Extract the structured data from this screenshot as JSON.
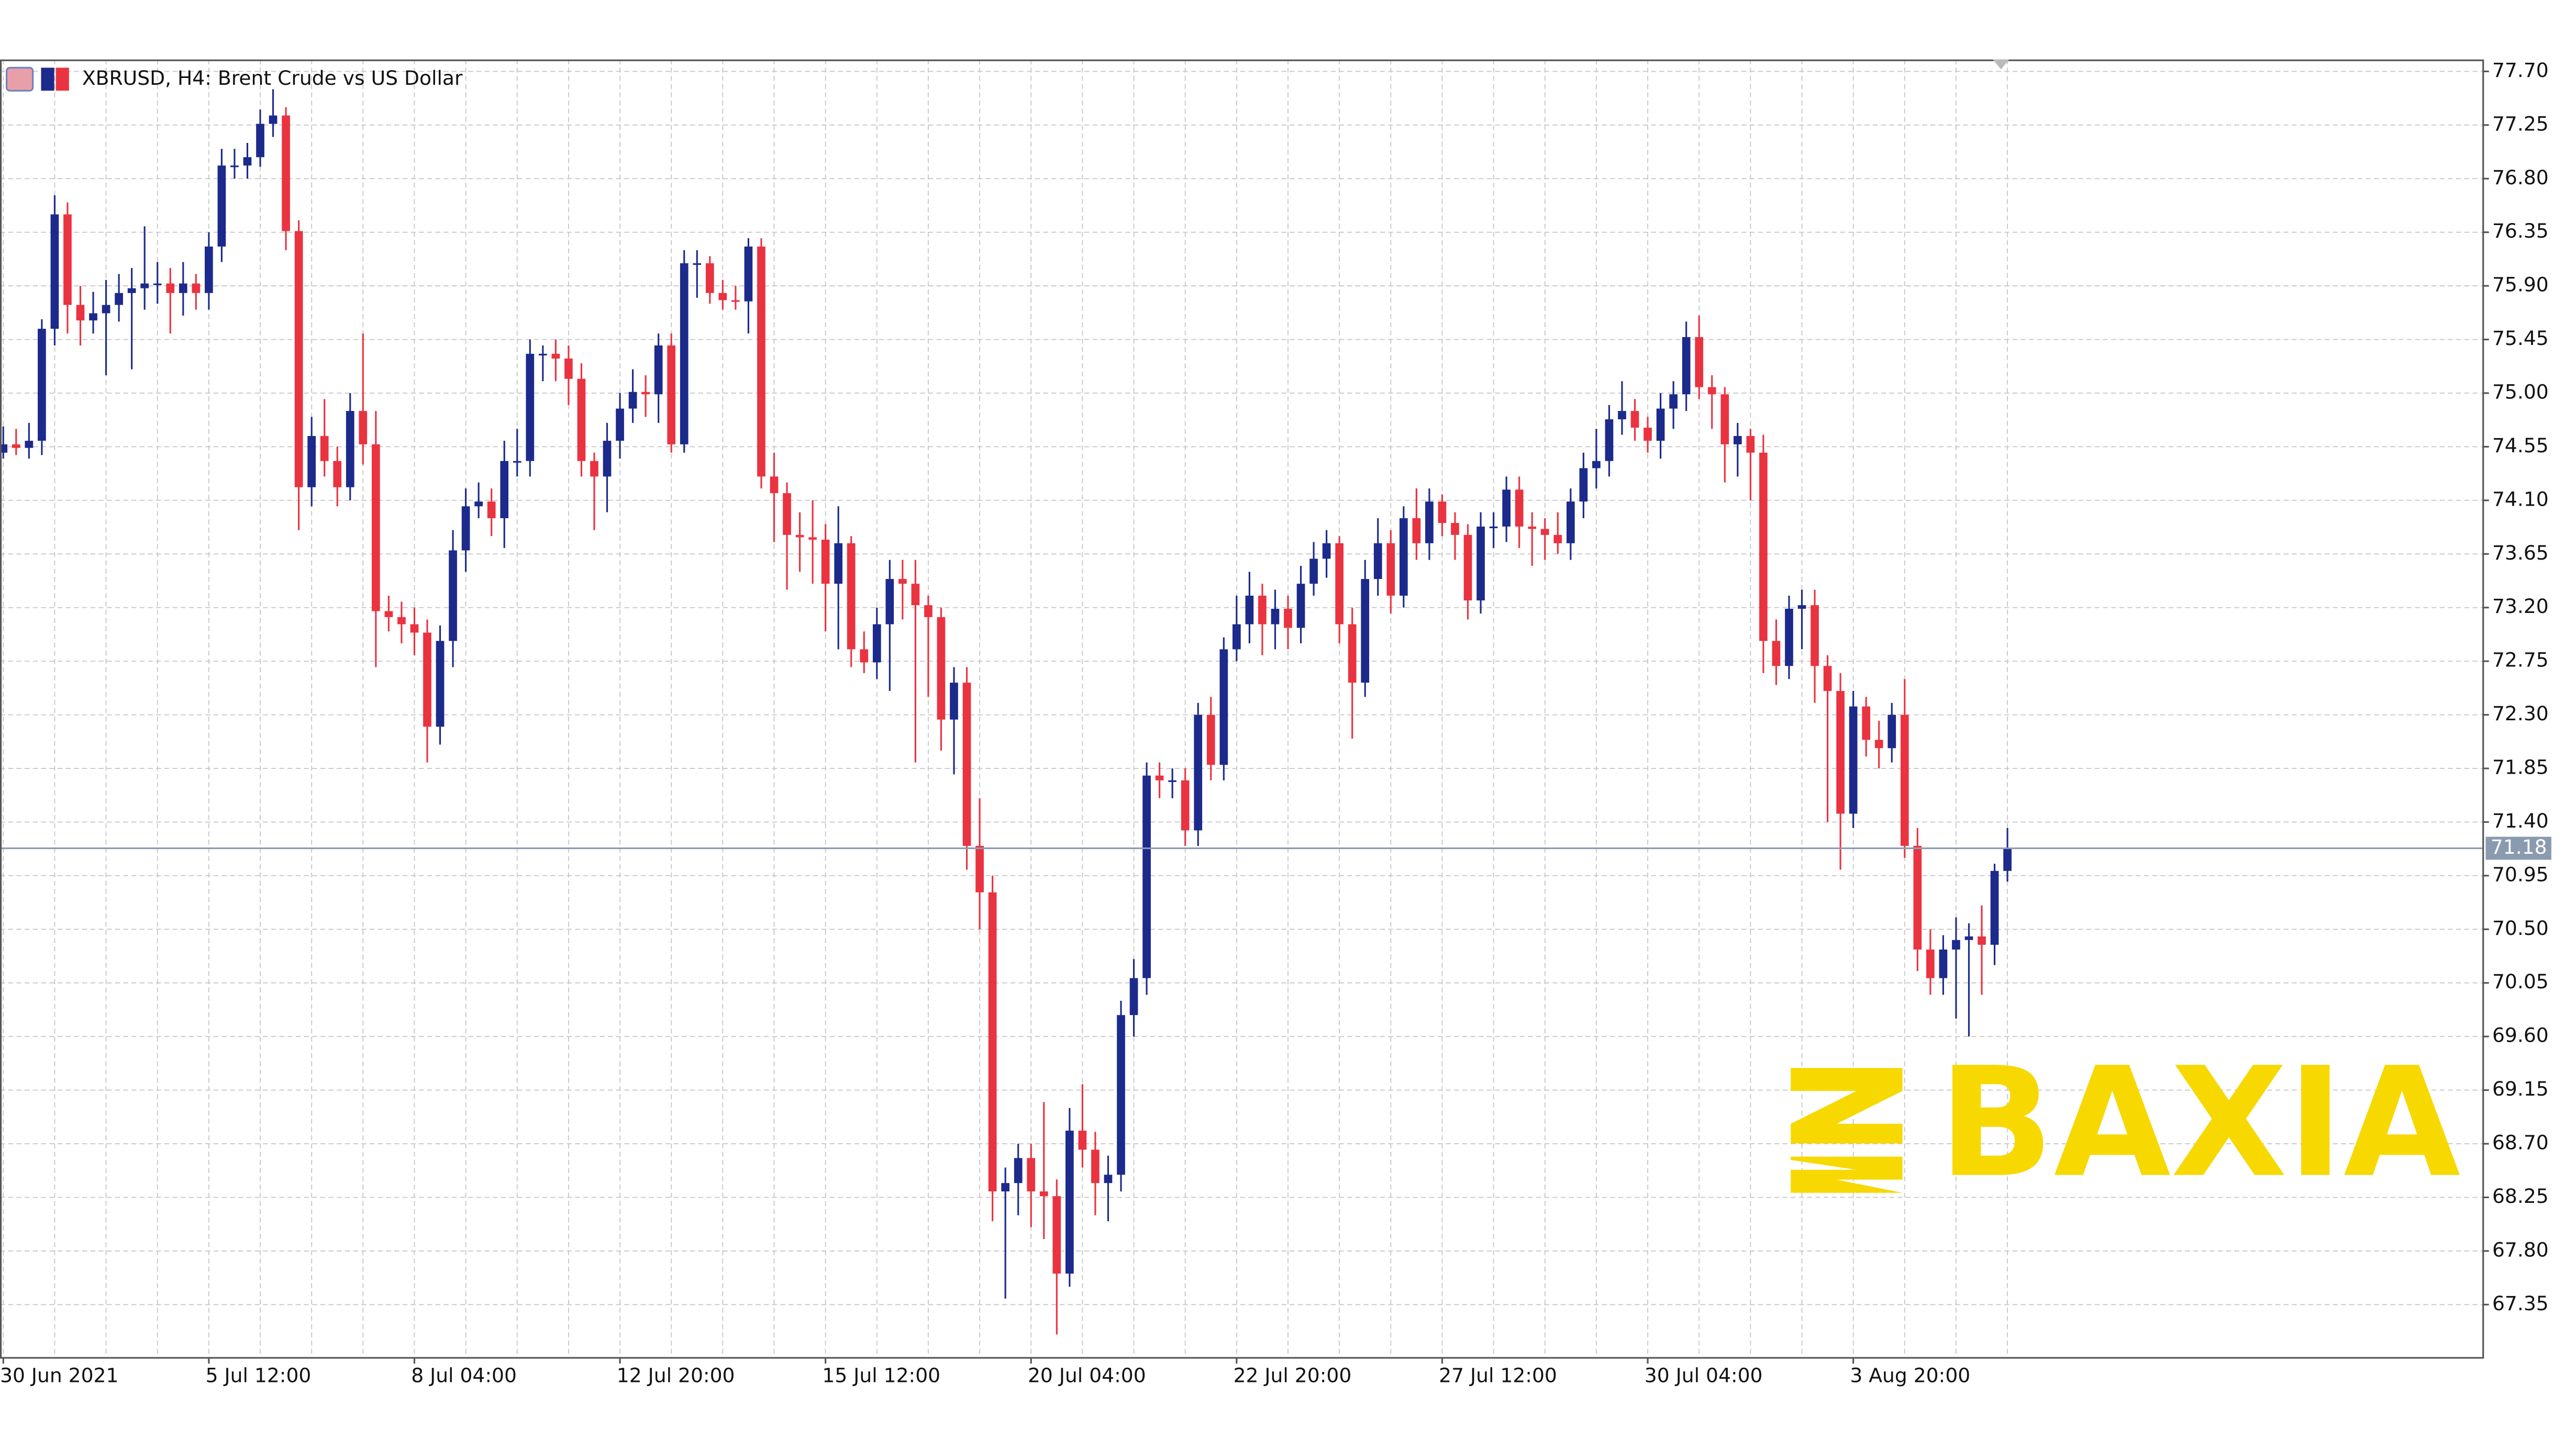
{
  "chart_data": {
    "type": "candlestick",
    "title": "XBRUSD, H4:  Brent Crude vs US Dollar",
    "watermark": "BAXIA",
    "bull_color": "#1c2a8c",
    "bear_color": "#ea3340",
    "grid": true,
    "ylim": [
      66.91,
      77.8
    ],
    "yticks": [
      {
        "value": 77.7,
        "label": "77.70"
      },
      {
        "value": 77.25,
        "label": "77.25"
      },
      {
        "value": 76.8,
        "label": "76.80"
      },
      {
        "value": 76.35,
        "label": "76.35"
      },
      {
        "value": 75.9,
        "label": "75.90"
      },
      {
        "value": 75.45,
        "label": "75.45"
      },
      {
        "value": 75.0,
        "label": "75.00"
      },
      {
        "value": 74.55,
        "label": "74.55"
      },
      {
        "value": 74.1,
        "label": "74.10"
      },
      {
        "value": 73.65,
        "label": "73.65"
      },
      {
        "value": 73.2,
        "label": "73.20"
      },
      {
        "value": 72.75,
        "label": "72.75"
      },
      {
        "value": 72.3,
        "label": "72.30"
      },
      {
        "value": 71.85,
        "label": "71.85"
      },
      {
        "value": 71.4,
        "label": "71.40"
      },
      {
        "value": 70.95,
        "label": "70.95"
      },
      {
        "value": 70.5,
        "label": "70.50"
      },
      {
        "value": 70.05,
        "label": "70.05"
      },
      {
        "value": 69.6,
        "label": "69.60"
      },
      {
        "value": 69.15,
        "label": "69.15"
      },
      {
        "value": 68.7,
        "label": "68.70"
      },
      {
        "value": 68.25,
        "label": "68.25"
      },
      {
        "value": 67.8,
        "label": "67.80"
      },
      {
        "value": 67.35,
        "label": "67.35"
      }
    ],
    "current_price": 71.18,
    "categories": [
      "30 Jun 2021",
      null,
      null,
      null,
      null,
      null,
      null,
      null,
      null,
      null,
      null,
      null,
      null,
      null,
      null,
      null,
      "5 Jul 12:00",
      null,
      null,
      null,
      null,
      null,
      null,
      null,
      null,
      null,
      null,
      null,
      null,
      null,
      null,
      null,
      "8 Jul 04:00",
      null,
      null,
      null,
      null,
      null,
      null,
      null,
      null,
      null,
      null,
      null,
      null,
      null,
      null,
      null,
      "12 Jul 20:00",
      null,
      null,
      null,
      null,
      null,
      null,
      null,
      null,
      null,
      null,
      null,
      null,
      null,
      null,
      null,
      "15 Jul 12:00",
      null,
      null,
      null,
      null,
      null,
      null,
      null,
      null,
      null,
      null,
      null,
      null,
      null,
      null,
      null,
      "20 Jul 04:00",
      null,
      null,
      null,
      null,
      null,
      null,
      null,
      null,
      null,
      null,
      null,
      null,
      null,
      null,
      null,
      "22 Jul 20:00",
      null,
      null,
      null,
      null,
      null,
      null,
      null,
      null,
      null,
      null,
      null,
      null,
      null,
      null,
      null,
      "27 Jul 12:00",
      null,
      null,
      null,
      null,
      null,
      null,
      null,
      null,
      null,
      null,
      null,
      null,
      null,
      null,
      null,
      "30 Jul 04:00",
      null,
      null,
      null,
      null,
      null,
      null,
      null,
      null,
      null,
      null,
      null,
      null,
      null,
      null,
      null,
      "3 Aug 20:00",
      null,
      null,
      null,
      null,
      null,
      null,
      null,
      null,
      null,
      null,
      null,
      null
    ],
    "ohlc": [
      [
        74.5,
        74.72,
        74.45,
        74.57
      ],
      [
        74.57,
        74.7,
        74.48,
        74.54
      ],
      [
        74.54,
        74.75,
        74.45,
        74.6
      ],
      [
        74.6,
        75.62,
        74.48,
        75.54
      ],
      [
        75.54,
        76.66,
        75.4,
        76.5
      ],
      [
        76.5,
        76.6,
        75.5,
        75.74
      ],
      [
        75.74,
        75.9,
        75.4,
        75.61
      ],
      [
        75.61,
        75.85,
        75.5,
        75.67
      ],
      [
        75.67,
        75.95,
        75.15,
        75.74
      ],
      [
        75.74,
        76.0,
        75.6,
        75.84
      ],
      [
        75.84,
        76.05,
        75.2,
        75.88
      ],
      [
        75.88,
        76.4,
        75.7,
        75.92
      ],
      [
        75.92,
        76.1,
        75.75,
        75.92
      ],
      [
        75.92,
        76.05,
        75.5,
        75.84
      ],
      [
        75.84,
        76.1,
        75.65,
        75.92
      ],
      [
        75.92,
        76.0,
        75.7,
        75.84
      ],
      [
        75.84,
        76.35,
        75.7,
        76.23
      ],
      [
        76.23,
        77.05,
        76.1,
        76.91
      ],
      [
        76.91,
        77.05,
        76.8,
        76.91
      ],
      [
        76.91,
        77.1,
        76.8,
        76.98
      ],
      [
        76.98,
        77.38,
        76.9,
        77.26
      ],
      [
        77.26,
        77.55,
        77.15,
        77.33
      ],
      [
        77.33,
        77.4,
        76.2,
        76.36
      ],
      [
        76.36,
        76.45,
        73.85,
        74.21
      ],
      [
        74.21,
        74.8,
        74.05,
        74.64
      ],
      [
        74.64,
        74.95,
        74.3,
        74.43
      ],
      [
        74.43,
        74.55,
        74.05,
        74.21
      ],
      [
        74.21,
        75.0,
        74.1,
        74.85
      ],
      [
        74.85,
        75.5,
        74.4,
        74.57
      ],
      [
        74.57,
        74.85,
        72.7,
        73.17
      ],
      [
        73.17,
        73.3,
        73.0,
        73.12
      ],
      [
        73.12,
        73.25,
        72.9,
        73.06
      ],
      [
        73.06,
        73.2,
        72.8,
        72.99
      ],
      [
        72.99,
        73.1,
        71.9,
        72.2
      ],
      [
        72.2,
        73.05,
        72.05,
        72.92
      ],
      [
        72.92,
        73.85,
        72.7,
        73.68
      ],
      [
        73.68,
        74.2,
        73.5,
        74.05
      ],
      [
        74.05,
        74.25,
        73.95,
        74.09
      ],
      [
        74.09,
        74.2,
        73.8,
        73.95
      ],
      [
        73.95,
        74.6,
        73.7,
        74.43
      ],
      [
        74.43,
        74.7,
        74.3,
        74.43
      ],
      [
        74.43,
        75.45,
        74.3,
        75.33
      ],
      [
        75.33,
        75.4,
        75.1,
        75.33
      ],
      [
        75.33,
        75.45,
        75.1,
        75.29
      ],
      [
        75.29,
        75.4,
        74.9,
        75.12
      ],
      [
        75.12,
        75.25,
        74.3,
        74.43
      ],
      [
        74.43,
        74.5,
        73.85,
        74.3
      ],
      [
        74.3,
        74.75,
        74.0,
        74.6
      ],
      [
        74.6,
        75.0,
        74.45,
        74.87
      ],
      [
        74.87,
        75.2,
        74.75,
        75.01
      ],
      [
        75.01,
        75.15,
        74.8,
        74.99
      ],
      [
        74.99,
        75.5,
        74.75,
        75.4
      ],
      [
        75.4,
        75.5,
        74.5,
        74.57
      ],
      [
        74.57,
        76.2,
        74.5,
        76.09
      ],
      [
        76.09,
        76.2,
        75.8,
        76.09
      ],
      [
        76.09,
        76.15,
        75.75,
        75.84
      ],
      [
        75.84,
        75.95,
        75.7,
        75.78
      ],
      [
        75.78,
        75.9,
        75.7,
        75.77
      ],
      [
        75.77,
        76.3,
        75.5,
        76.23
      ],
      [
        76.23,
        76.3,
        74.2,
        74.3
      ],
      [
        74.3,
        74.5,
        73.75,
        74.16
      ],
      [
        74.16,
        74.25,
        73.35,
        73.81
      ],
      [
        73.81,
        74.0,
        73.5,
        73.79
      ],
      [
        73.79,
        74.1,
        73.4,
        73.77
      ],
      [
        73.77,
        73.9,
        73.0,
        73.4
      ],
      [
        73.4,
        74.05,
        72.85,
        73.74
      ],
      [
        73.74,
        73.8,
        72.7,
        72.85
      ],
      [
        72.85,
        73.0,
        72.65,
        72.74
      ],
      [
        72.74,
        73.2,
        72.6,
        73.06
      ],
      [
        73.06,
        73.6,
        72.5,
        73.44
      ],
      [
        73.44,
        73.6,
        73.1,
        73.4
      ],
      [
        73.4,
        73.6,
        71.9,
        73.22
      ],
      [
        73.22,
        73.3,
        72.45,
        73.12
      ],
      [
        73.12,
        73.2,
        72.0,
        72.26
      ],
      [
        72.26,
        72.7,
        71.8,
        72.57
      ],
      [
        72.57,
        72.7,
        71.0,
        71.2
      ],
      [
        71.2,
        71.6,
        70.5,
        70.81
      ],
      [
        70.81,
        70.95,
        68.05,
        68.3
      ],
      [
        68.3,
        68.5,
        67.4,
        68.37
      ],
      [
        68.37,
        68.7,
        68.1,
        68.58
      ],
      [
        68.58,
        68.7,
        68.0,
        68.3
      ],
      [
        68.3,
        69.05,
        67.9,
        68.26
      ],
      [
        68.26,
        68.4,
        67.1,
        67.61
      ],
      [
        67.61,
        69.0,
        67.5,
        68.81
      ],
      [
        68.81,
        69.2,
        68.5,
        68.65
      ],
      [
        68.65,
        68.8,
        68.1,
        68.37
      ],
      [
        68.37,
        68.6,
        68.05,
        68.44
      ],
      [
        68.44,
        69.9,
        68.3,
        69.78
      ],
      [
        69.78,
        70.25,
        69.6,
        70.09
      ],
      [
        70.09,
        71.9,
        69.95,
        71.79
      ],
      [
        71.79,
        71.9,
        71.6,
        71.75
      ],
      [
        71.75,
        71.85,
        71.6,
        71.75
      ],
      [
        71.75,
        71.85,
        71.2,
        71.33
      ],
      [
        71.33,
        72.4,
        71.2,
        72.3
      ],
      [
        72.3,
        72.45,
        71.75,
        71.88
      ],
      [
        71.88,
        72.95,
        71.75,
        72.85
      ],
      [
        72.85,
        73.3,
        72.75,
        73.06
      ],
      [
        73.06,
        73.5,
        72.9,
        73.3
      ],
      [
        73.3,
        73.4,
        72.8,
        73.06
      ],
      [
        73.06,
        73.35,
        72.85,
        73.19
      ],
      [
        73.19,
        73.3,
        72.85,
        73.03
      ],
      [
        73.03,
        73.55,
        72.9,
        73.4
      ],
      [
        73.4,
        73.75,
        73.3,
        73.61
      ],
      [
        73.61,
        73.85,
        73.45,
        73.74
      ],
      [
        73.74,
        73.8,
        72.9,
        73.06
      ],
      [
        73.06,
        73.2,
        72.1,
        72.57
      ],
      [
        72.57,
        73.6,
        72.45,
        73.44
      ],
      [
        73.44,
        73.95,
        73.3,
        73.74
      ],
      [
        73.74,
        73.85,
        73.15,
        73.3
      ],
      [
        73.3,
        74.05,
        73.2,
        73.95
      ],
      [
        73.95,
        74.2,
        73.6,
        73.74
      ],
      [
        73.74,
        74.2,
        73.6,
        74.09
      ],
      [
        74.09,
        74.15,
        73.8,
        73.91
      ],
      [
        73.91,
        74.0,
        73.6,
        73.81
      ],
      [
        73.81,
        73.9,
        73.1,
        73.26
      ],
      [
        73.26,
        74.0,
        73.15,
        73.88
      ],
      [
        73.88,
        74.0,
        73.7,
        73.88
      ],
      [
        73.88,
        74.3,
        73.75,
        74.19
      ],
      [
        74.19,
        74.3,
        73.7,
        73.88
      ],
      [
        73.88,
        74.0,
        73.55,
        73.86
      ],
      [
        73.86,
        73.95,
        73.6,
        73.81
      ],
      [
        73.81,
        74.0,
        73.65,
        73.74
      ],
      [
        73.74,
        74.2,
        73.6,
        74.09
      ],
      [
        74.09,
        74.5,
        73.95,
        74.37
      ],
      [
        74.37,
        74.7,
        74.2,
        74.43
      ],
      [
        74.43,
        74.9,
        74.3,
        74.78
      ],
      [
        74.78,
        75.1,
        74.65,
        74.85
      ],
      [
        74.85,
        74.95,
        74.6,
        74.71
      ],
      [
        74.71,
        74.8,
        74.5,
        74.6
      ],
      [
        74.6,
        75.0,
        74.45,
        74.87
      ],
      [
        74.87,
        75.1,
        74.7,
        74.99
      ],
      [
        74.99,
        75.6,
        74.85,
        75.47
      ],
      [
        75.47,
        75.65,
        74.95,
        75.05
      ],
      [
        75.05,
        75.15,
        74.7,
        74.99
      ],
      [
        74.99,
        75.05,
        74.25,
        74.57
      ],
      [
        74.57,
        74.75,
        74.3,
        74.64
      ],
      [
        74.64,
        74.7,
        74.1,
        74.5
      ],
      [
        74.5,
        74.65,
        72.65,
        72.92
      ],
      [
        72.92,
        73.1,
        72.55,
        72.71
      ],
      [
        72.71,
        73.3,
        72.6,
        73.19
      ],
      [
        73.19,
        73.35,
        72.85,
        73.22
      ],
      [
        73.22,
        73.35,
        72.4,
        72.71
      ],
      [
        72.71,
        72.8,
        71.4,
        72.5
      ],
      [
        72.5,
        72.65,
        71.0,
        71.47
      ],
      [
        71.47,
        72.5,
        71.35,
        72.37
      ],
      [
        72.37,
        72.45,
        71.95,
        72.09
      ],
      [
        72.09,
        72.25,
        71.85,
        72.02
      ],
      [
        72.02,
        72.4,
        71.9,
        72.3
      ],
      [
        72.3,
        72.6,
        71.1,
        71.2
      ],
      [
        71.2,
        71.35,
        70.15,
        70.33
      ],
      [
        70.33,
        70.5,
        69.95,
        70.09
      ],
      [
        70.09,
        70.45,
        69.95,
        70.33
      ],
      [
        70.33,
        70.6,
        69.75,
        70.41
      ],
      [
        70.41,
        70.55,
        69.6,
        70.44
      ],
      [
        70.44,
        70.7,
        69.95,
        70.37
      ],
      [
        70.37,
        71.05,
        70.2,
        70.99
      ],
      [
        70.99,
        71.35,
        70.9,
        71.18
      ]
    ]
  }
}
